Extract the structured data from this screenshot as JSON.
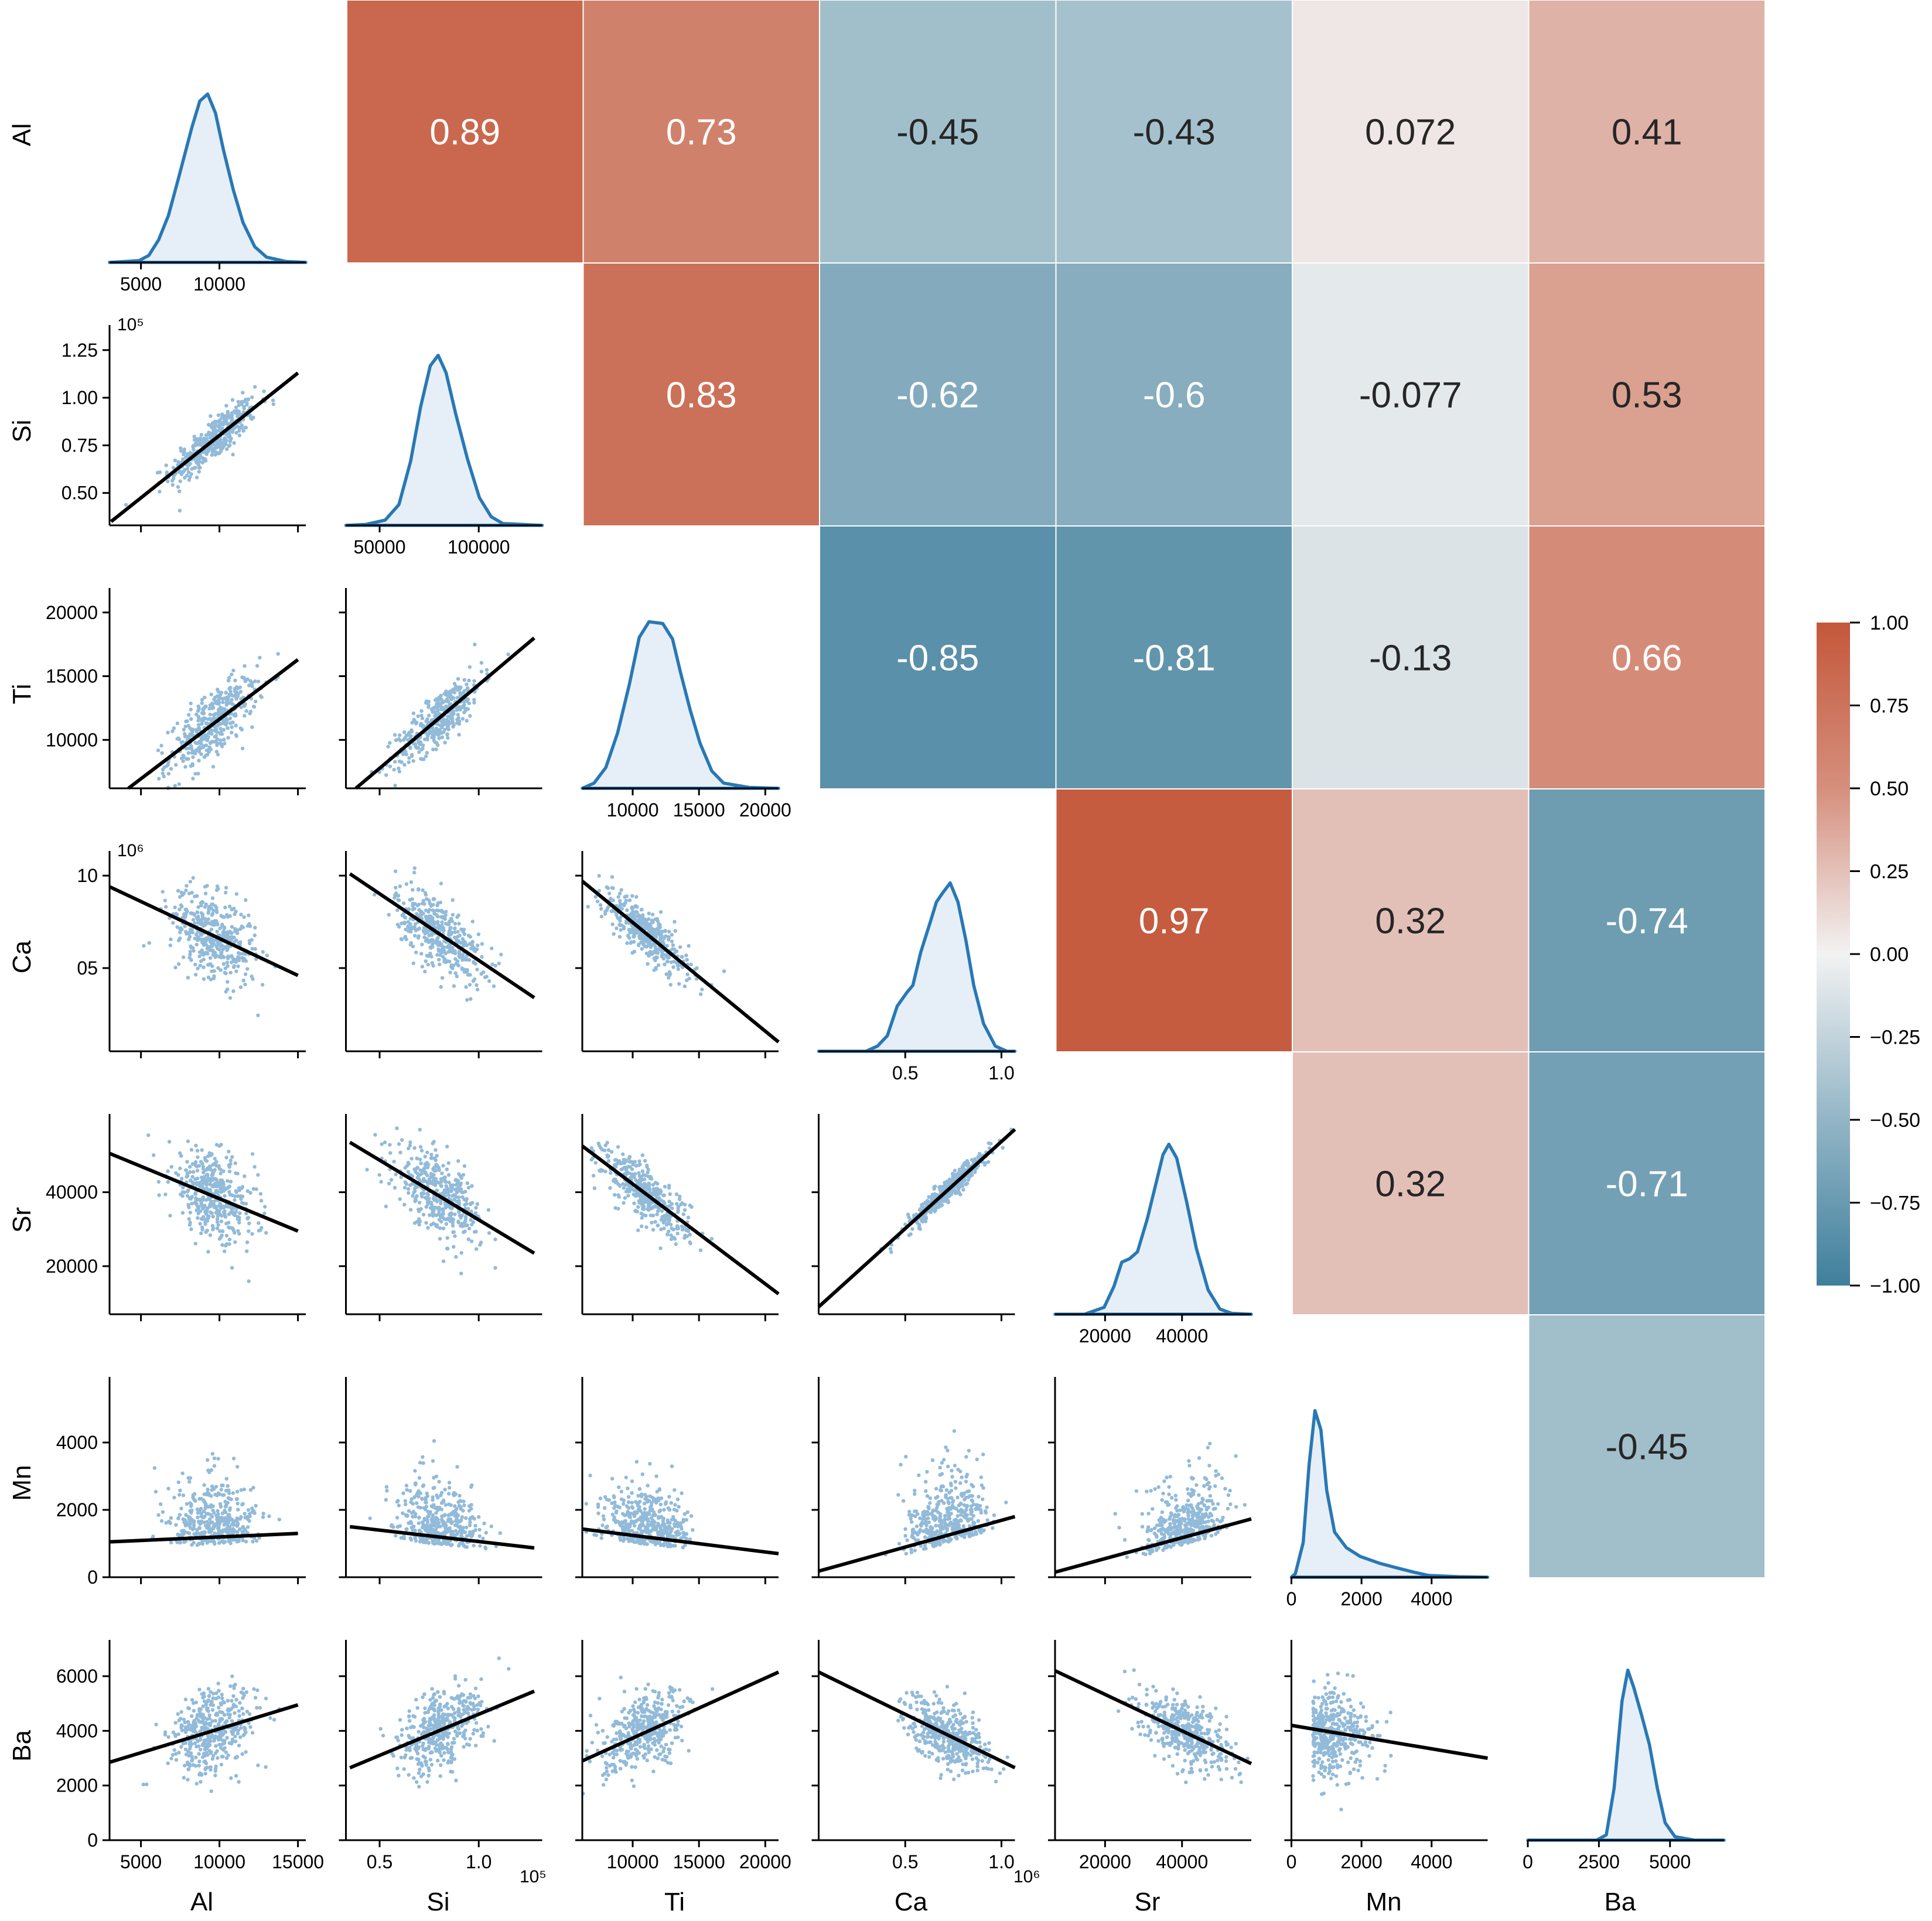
{
  "chart_data": {
    "type": "heatmap",
    "title": "",
    "subtitle": "",
    "description": "Pair plot of element concentrations: lower triangle scatter plots with regression lines, diagonal KDE density plots, upper triangle Pearson correlation heatmap.",
    "variables": [
      "Al",
      "Si",
      "Ti",
      "Ca",
      "Sr",
      "Mn",
      "Ba"
    ],
    "correlation_matrix": [
      [
        1,
        0.89,
        0.73,
        -0.45,
        -0.43,
        0.072,
        0.41
      ],
      [
        0.89,
        1,
        0.83,
        -0.62,
        -0.6,
        -0.077,
        0.53
      ],
      [
        0.73,
        0.83,
        1,
        -0.85,
        -0.81,
        -0.13,
        0.66
      ],
      [
        -0.45,
        -0.62,
        -0.85,
        1,
        0.97,
        0.32,
        -0.74
      ],
      [
        -0.43,
        -0.6,
        -0.81,
        0.97,
        1,
        0.32,
        -0.71
      ],
      [
        0.072,
        -0.077,
        -0.13,
        0.32,
        0.32,
        1,
        -0.45
      ],
      [
        0.41,
        0.53,
        0.66,
        -0.74,
        -0.71,
        -0.45,
        1
      ]
    ],
    "upper_cells": [
      {
        "row": 0,
        "col": 1,
        "label": "0.89"
      },
      {
        "row": 0,
        "col": 2,
        "label": "0.73"
      },
      {
        "row": 0,
        "col": 3,
        "label": "-0.45"
      },
      {
        "row": 0,
        "col": 4,
        "label": "-0.43"
      },
      {
        "row": 0,
        "col": 5,
        "label": "0.072"
      },
      {
        "row": 0,
        "col": 6,
        "label": "0.41"
      },
      {
        "row": 1,
        "col": 2,
        "label": "0.83"
      },
      {
        "row": 1,
        "col": 3,
        "label": "-0.62"
      },
      {
        "row": 1,
        "col": 4,
        "label": "-0.6"
      },
      {
        "row": 1,
        "col": 5,
        "label": "-0.077"
      },
      {
        "row": 1,
        "col": 6,
        "label": "0.53"
      },
      {
        "row": 2,
        "col": 3,
        "label": "-0.85"
      },
      {
        "row": 2,
        "col": 4,
        "label": "-0.81"
      },
      {
        "row": 2,
        "col": 5,
        "label": "-0.13"
      },
      {
        "row": 2,
        "col": 6,
        "label": "0.66"
      },
      {
        "row": 3,
        "col": 4,
        "label": "0.97"
      },
      {
        "row": 3,
        "col": 5,
        "label": "0.32"
      },
      {
        "row": 3,
        "col": 6,
        "label": "-0.74"
      },
      {
        "row": 4,
        "col": 5,
        "label": "0.32"
      },
      {
        "row": 4,
        "col": 6,
        "label": "-0.71"
      },
      {
        "row": 5,
        "col": 6,
        "label": "-0.45"
      }
    ],
    "colorbar": {
      "range": [
        -1.0,
        1.0
      ],
      "ticks": [
        "1.00",
        "0.75",
        "0.50",
        "0.25",
        "0.00",
        "−0.25",
        "−0.50",
        "−0.75",
        "−1.00"
      ],
      "tick_values": [
        1.0,
        0.75,
        0.5,
        0.25,
        0.0,
        -0.25,
        -0.5,
        -0.75,
        -1.0
      ],
      "colormap": {
        "negative": "#3f7f9c",
        "zero": "#f2f2f2",
        "positive": "#c4573a"
      },
      "placement": "right"
    },
    "axes": {
      "Al": {
        "range": [
          3000,
          15500
        ],
        "ticks": [
          5000,
          10000,
          15000
        ],
        "tick_labels": [
          "5000",
          "10000",
          "15000"
        ],
        "diag_tick_labels": [
          "5000",
          "10000"
        ],
        "offset": ""
      },
      "Si": {
        "range": [
          0.33,
          1.32
        ],
        "ticks": [
          0.5,
          1.0
        ],
        "tick_labels": [
          "0.5",
          "1.0"
        ],
        "y_ticks": [
          0.5,
          0.75,
          1.0,
          1.25
        ],
        "y_tick_labels": [
          "0.50",
          "0.75",
          "1.00",
          "1.25"
        ],
        "diag_tick_labels": [
          "50000",
          "100000"
        ],
        "diag_ticks": [
          0.5,
          1.0
        ],
        "offset": "10^5"
      },
      "Ti": {
        "range": [
          6200,
          21000
        ],
        "ticks": [
          10000,
          15000,
          20000
        ],
        "tick_labels": [
          "10000",
          "15000",
          "20000"
        ],
        "y_ticks": [
          10000,
          15000,
          20000
        ],
        "y_tick_labels": [
          "10000",
          "15000",
          "20000"
        ],
        "offset": ""
      },
      "Ca": {
        "range": [
          0.05,
          1.07
        ],
        "ticks": [
          0.5,
          1.0
        ],
        "tick_labels": [
          "0.5",
          "1.0"
        ],
        "y_ticks": [
          0.5,
          1.0
        ],
        "y_tick_labels": [
          "05",
          "10"
        ],
        "offset": "10^6"
      },
      "Sr": {
        "range": [
          7000,
          58000
        ],
        "ticks": [
          20000,
          40000
        ],
        "tick_labels": [
          "20000",
          "40000"
        ],
        "y_ticks": [
          20000,
          40000
        ],
        "y_tick_labels": [
          "20000",
          "40000"
        ],
        "offset": ""
      },
      "Mn": {
        "range": [
          0,
          5600
        ],
        "ticks": [
          0,
          2000,
          4000
        ],
        "tick_labels": [
          "0",
          "2000",
          "4000"
        ],
        "y_ticks": [
          0,
          2000,
          4000
        ],
        "y_tick_labels": [
          "0",
          "2000",
          "4000"
        ],
        "offset": ""
      },
      "Ba": {
        "range": [
          0,
          6900
        ],
        "ticks": [
          0,
          2500,
          5000
        ],
        "tick_labels": [
          "0",
          "2500",
          "5000"
        ],
        "y_ticks": [
          0,
          2000,
          4000,
          6000
        ],
        "y_tick_labels": [
          "0",
          "2000",
          "4000",
          "6000"
        ],
        "offset": ""
      }
    },
    "offset_labels": {
      "si_y": "10⁵",
      "ca_y": "10⁶",
      "si_x": "10⁵",
      "ca_x": "10⁶"
    },
    "kde_peaks": {
      "Al": 9600,
      "Si": 0.8,
      "Ti": 11000,
      "Ca": 0.72,
      "Sr": 41000,
      "Mn": 800,
      "Ba": 3800
    },
    "regression_lines": [
      {
        "x": "Al",
        "y": "Si",
        "from": [
          3100,
          0.35
        ],
        "to": [
          15000,
          1.13
        ]
      },
      {
        "x": "Al",
        "y": "Ti",
        "from": [
          4200,
          6200
        ],
        "to": [
          15000,
          16300
        ]
      },
      {
        "x": "Si",
        "y": "Ti",
        "from": [
          0.38,
          6200
        ],
        "to": [
          1.28,
          18000
        ]
      },
      {
        "x": "Al",
        "y": "Ca",
        "from": [
          3000,
          0.94
        ],
        "to": [
          15000,
          0.46
        ]
      },
      {
        "x": "Si",
        "y": "Ca",
        "from": [
          0.35,
          1.01
        ],
        "to": [
          1.28,
          0.34
        ]
      },
      {
        "x": "Ti",
        "y": "Ca",
        "from": [
          6200,
          0.97
        ],
        "to": [
          21000,
          0.1
        ]
      },
      {
        "x": "Al",
        "y": "Sr",
        "from": [
          3000,
          50500
        ],
        "to": [
          15000,
          29500
        ]
      },
      {
        "x": "Si",
        "y": "Sr",
        "from": [
          0.35,
          53500
        ],
        "to": [
          1.28,
          23500
        ]
      },
      {
        "x": "Ti",
        "y": "Sr",
        "from": [
          6200,
          52500
        ],
        "to": [
          21000,
          12500
        ]
      },
      {
        "x": "Ca",
        "y": "Sr",
        "from": [
          0.05,
          9000
        ],
        "to": [
          1.07,
          57000
        ]
      },
      {
        "x": "Al",
        "y": "Mn",
        "from": [
          3000,
          1050
        ],
        "to": [
          15000,
          1300
        ]
      },
      {
        "x": "Si",
        "y": "Mn",
        "from": [
          0.35,
          1500
        ],
        "to": [
          1.28,
          870
        ]
      },
      {
        "x": "Ti",
        "y": "Mn",
        "from": [
          6200,
          1430
        ],
        "to": [
          21000,
          700
        ]
      },
      {
        "x": "Ca",
        "y": "Mn",
        "from": [
          0.05,
          180
        ],
        "to": [
          1.07,
          1800
        ]
      },
      {
        "x": "Sr",
        "y": "Mn",
        "from": [
          7000,
          150
        ],
        "to": [
          58000,
          1730
        ]
      },
      {
        "x": "Al",
        "y": "Ba",
        "from": [
          3000,
          2850
        ],
        "to": [
          15000,
          4950
        ]
      },
      {
        "x": "Si",
        "y": "Ba",
        "from": [
          0.35,
          2650
        ],
        "to": [
          1.28,
          5450
        ]
      },
      {
        "x": "Ti",
        "y": "Ba",
        "from": [
          6200,
          2900
        ],
        "to": [
          21000,
          6150
        ]
      },
      {
        "x": "Ca",
        "y": "Ba",
        "from": [
          0.05,
          6150
        ],
        "to": [
          1.07,
          2650
        ]
      },
      {
        "x": "Sr",
        "y": "Ba",
        "from": [
          7000,
          6200
        ],
        "to": [
          58000,
          2800
        ]
      },
      {
        "x": "Mn",
        "y": "Ba",
        "from": [
          0,
          4200
        ],
        "to": [
          5600,
          3000
        ]
      }
    ],
    "xlabel": [
      "Al",
      "Si",
      "Ti",
      "Ca",
      "Sr",
      "Mn",
      "Ba"
    ],
    "ylabel": [
      "Al",
      "Si",
      "Ti",
      "Ca",
      "Sr",
      "Mn",
      "Ba"
    ],
    "grid": false,
    "legend": "none"
  }
}
